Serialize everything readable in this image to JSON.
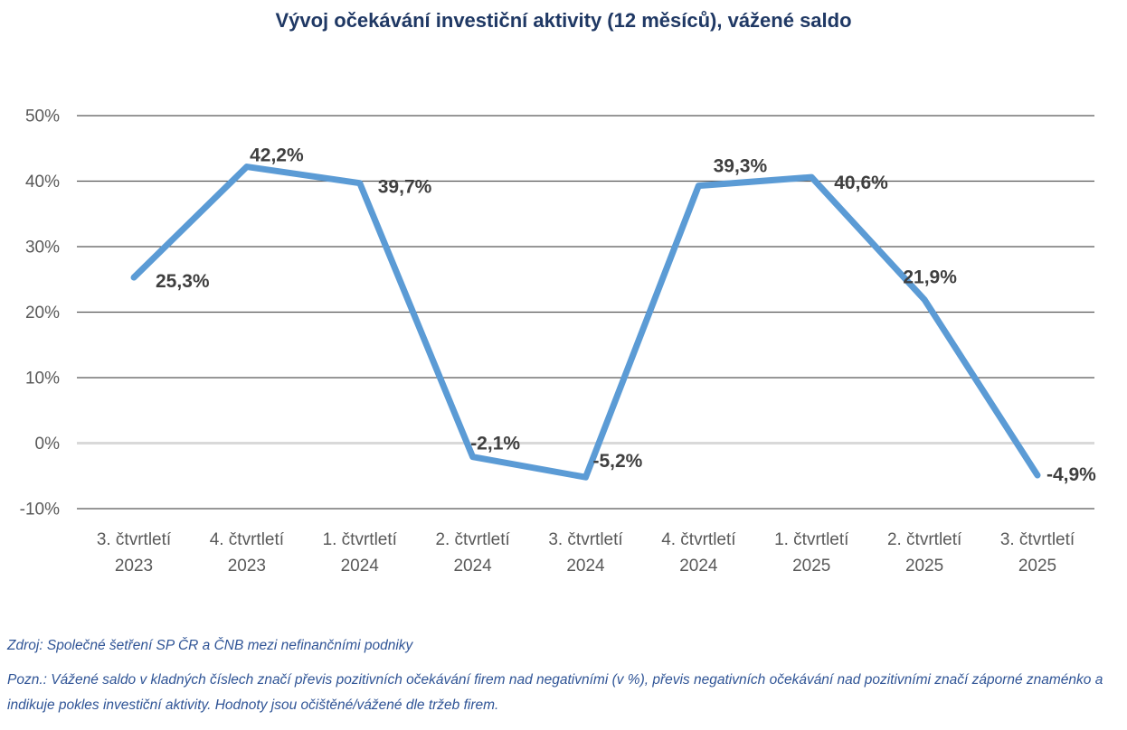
{
  "page": {
    "title": "Vývoj očekávání investiční aktivity (12 měsíců), vážené saldo",
    "source": "Zdroj: Společné šetření SP ČR a ČNB mezi nefinančními podniky",
    "note": "Pozn.: Vážené saldo v kladných číslech značí převis pozitivních očekávání firem nad negativními (v %), převis negativních očekávání nad pozitivními značí záporné znaménko a indikuje pokles investiční aktivity. Hodnoty jsou očištěné/vážené dle tržeb firem."
  },
  "chart_data": {
    "type": "line",
    "title": "Vývoj očekávání investiční aktivity (12 měsíců), vážené saldo",
    "categories": [
      [
        "3. čtvrtletí",
        "2023"
      ],
      [
        "4. čtvrtletí",
        "2023"
      ],
      [
        "1. čtvrtletí",
        "2024"
      ],
      [
        "2. čtvrtletí",
        "2024"
      ],
      [
        "3. čtvrtletí",
        "2024"
      ],
      [
        "4. čtvrtletí",
        "2024"
      ],
      [
        "1. čtvrtletí",
        "2025"
      ],
      [
        "2. čtvrtletí",
        "2025"
      ],
      [
        "3. čtvrtletí",
        "2025"
      ]
    ],
    "values": [
      25.3,
      42.2,
      39.7,
      -2.1,
      -5.2,
      39.3,
      40.6,
      21.9,
      -4.9
    ],
    "point_labels": [
      "25,3%",
      "42,2%",
      "39,7%",
      "-2,1%",
      "-5,2%",
      "39,3%",
      "40,6%",
      "21,9%",
      "-4,9%"
    ],
    "label_offsets": [
      [
        24,
        11,
        "start"
      ],
      [
        33,
        -6,
        "middle"
      ],
      [
        20,
        11,
        "start"
      ],
      [
        25,
        -8,
        "middle"
      ],
      [
        8,
        -11,
        "start"
      ],
      [
        46,
        -15,
        "middle"
      ],
      [
        25,
        13,
        "start"
      ],
      [
        6,
        -18,
        "middle"
      ],
      [
        10,
        6,
        "start"
      ]
    ],
    "y_ticks": [
      "50%",
      "40%",
      "30%",
      "20%",
      "10%",
      "0%",
      "-10%"
    ],
    "y_tick_values": [
      50,
      40,
      30,
      20,
      10,
      0,
      -10
    ],
    "ylim": [
      -10,
      50
    ],
    "xlabel": "",
    "ylabel": "",
    "grid": true,
    "legend": "none",
    "colors": {
      "line": "#5B9BD5",
      "grid": "#595959",
      "zero_line": "#D9D9D9",
      "data_label": "#3F3F3F",
      "axis_label": "#595959",
      "title": "#1F3864",
      "footnote": "#2F5496"
    }
  }
}
